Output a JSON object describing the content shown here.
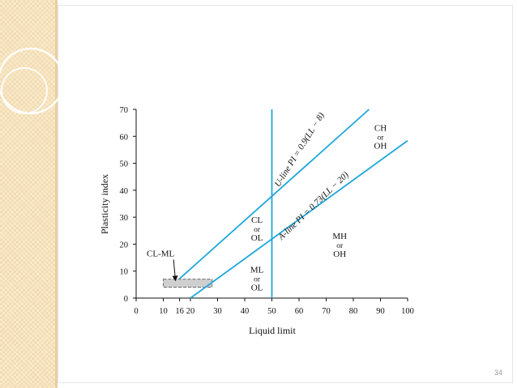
{
  "slide": {
    "page_number": "34"
  },
  "chart_data": {
    "type": "line",
    "title": "",
    "xlabel": "Liquid limit",
    "ylabel": "Plasticity index",
    "xlim": [
      0,
      100
    ],
    "ylim": [
      0,
      70
    ],
    "x_ticks": [
      0,
      10,
      16,
      20,
      30,
      40,
      50,
      60,
      70,
      80,
      90,
      100
    ],
    "y_ticks": [
      0,
      10,
      20,
      30,
      40,
      50,
      60,
      70
    ],
    "grid": false,
    "series": [
      {
        "name": "U-line PI = 0.9(LL − 8)",
        "color": "#1fa7dc",
        "x": [
          16,
          85.8
        ],
        "y": [
          7.2,
          70
        ]
      },
      {
        "name": "A-line PI = 0.73(LL − 20)",
        "color": "#1fa7dc",
        "x": [
          20,
          100
        ],
        "y": [
          0,
          58.4
        ]
      },
      {
        "name": "",
        "color": "#1fa7dc",
        "x": [
          50,
          50
        ],
        "y": [
          0,
          70
        ]
      }
    ],
    "shaded_region": {
      "x": [
        10,
        28
      ],
      "y": [
        4,
        7
      ],
      "fill": "#cfcfcf"
    },
    "zone_labels": [
      {
        "lines": [
          "CH",
          "or",
          "OH"
        ],
        "x": 90,
        "y": 62
      },
      {
        "lines": [
          "CL",
          "or",
          "OL"
        ],
        "x": 44.5,
        "y": 28
      },
      {
        "lines": [
          "MH",
          "or",
          "OH"
        ],
        "x": 75,
        "y": 22
      },
      {
        "lines": [
          "ML",
          "or",
          "OL"
        ],
        "x": 44.5,
        "y": 9.5
      }
    ],
    "annotations": [
      {
        "text": "CL-ML",
        "x": 9,
        "y": 15.5,
        "arrow_to": [
          14.5,
          6.5
        ]
      }
    ],
    "line_labels": [
      {
        "text": "U-line PI = 0.9(LL − 8)",
        "x": 61,
        "y": 54.5,
        "angle_deg": -58
      },
      {
        "text": "A-line PI = 0.73(LL − 20)",
        "x": 66,
        "y": 33.5,
        "angle_deg": -44
      }
    ]
  }
}
